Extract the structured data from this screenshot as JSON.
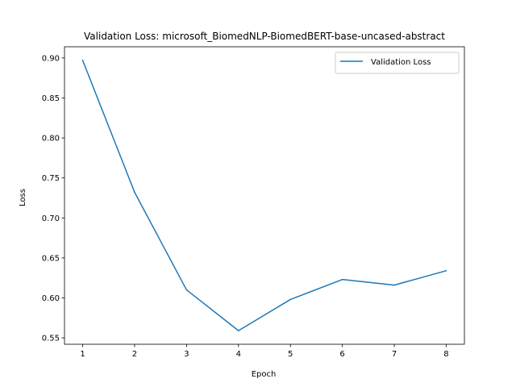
{
  "chart_data": {
    "type": "line",
    "title": "Validation Loss: microsoft_BiomedNLP-BiomedBERT-base-uncased-abstract",
    "xlabel": "Epoch",
    "ylabel": "Loss",
    "x": [
      1,
      2,
      3,
      4,
      5,
      6,
      7,
      8
    ],
    "xticks": [
      "1",
      "2",
      "3",
      "4",
      "5",
      "6",
      "7",
      "8"
    ],
    "yticks": [
      "0.55",
      "0.60",
      "0.65",
      "0.70",
      "0.75",
      "0.80",
      "0.85",
      "0.90"
    ],
    "xlim": [
      0.65,
      8.35
    ],
    "ylim": [
      0.542,
      0.914
    ],
    "grid": false,
    "legend_position": "top-right",
    "series": [
      {
        "name": "Validation Loss",
        "color": "#1f77b4",
        "values": [
          0.897,
          0.732,
          0.61,
          0.559,
          0.598,
          0.623,
          0.616,
          0.634
        ]
      }
    ]
  }
}
